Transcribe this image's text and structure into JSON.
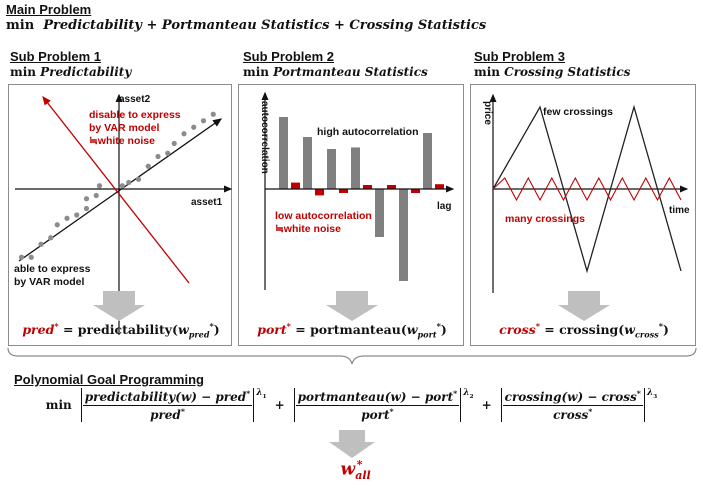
{
  "main": {
    "title": "Main Problem",
    "formula_parts": [
      "min",
      "Predictability",
      "+",
      "Portmanteau Statistics",
      "+",
      "Crossing Statistics"
    ]
  },
  "sub1": {
    "title": "Sub Problem 1",
    "objective": [
      "min",
      "Predictability"
    ],
    "axis_x": "asset1",
    "axis_y": "asset2",
    "label_red": [
      "disable to express",
      "by VAR model",
      "≒white noise"
    ],
    "label_black": [
      "able to express",
      "by VAR model"
    ],
    "result": [
      "pred",
      "*",
      " = predictability(",
      "w",
      "pred",
      "*",
      ")"
    ]
  },
  "sub2": {
    "title": "Sub Problem 2",
    "objective": [
      "min",
      "Portmanteau Statistics"
    ],
    "axis_x": "lag",
    "axis_y": "autocorrelation",
    "label_high": "high autocorrelation",
    "label_low": [
      "low autocorrelation",
      "≒white noise"
    ],
    "result": [
      "port",
      "*",
      " = portmanteau(",
      "w",
      "port",
      "*",
      ")"
    ]
  },
  "sub3": {
    "title": "Sub Problem 3",
    "objective": [
      "min",
      "Crossing Statistics"
    ],
    "axis_x": "time",
    "axis_y": "price",
    "label_few": "few crossings",
    "label_many": "many crossings",
    "result": [
      "cross",
      "*",
      " = crossing(",
      "w",
      "cross",
      "*",
      ")"
    ]
  },
  "pgp": {
    "title": "Polynomial Goal Programming",
    "min": "min",
    "t1_num": [
      "predictability(w) − pred",
      "*"
    ],
    "t1_den": [
      "pred",
      "*"
    ],
    "t1_exp": [
      "λ",
      "1"
    ],
    "plus": "+",
    "t2_num": [
      "portmanteau(w) − port",
      "*"
    ],
    "t2_den": [
      "port",
      "*"
    ],
    "t2_exp": [
      "λ",
      "2"
    ],
    "t3_num": [
      "crossing(w) − cross",
      "*"
    ],
    "t3_den": [
      "cross",
      "*"
    ],
    "t3_exp": [
      "λ",
      "3"
    ],
    "final": [
      "w",
      "all",
      "*"
    ]
  },
  "chart_data": [
    {
      "type": "scatter",
      "title": "",
      "xlabel": "asset1",
      "ylabel": "asset2",
      "points": [
        [
          -1.5,
          -1.05
        ],
        [
          -1.35,
          -1.05
        ],
        [
          -1.2,
          -0.85
        ],
        [
          -1.05,
          -0.75
        ],
        [
          -0.95,
          -0.55
        ],
        [
          -0.8,
          -0.45
        ],
        [
          -0.65,
          -0.4
        ],
        [
          -0.5,
          -0.3
        ],
        [
          -0.5,
          -0.15
        ],
        [
          -0.35,
          -0.1
        ],
        [
          -0.3,
          0.05
        ],
        [
          0.05,
          0.05
        ],
        [
          0.15,
          0.1
        ],
        [
          0.3,
          0.15
        ],
        [
          0.45,
          0.35
        ],
        [
          0.6,
          0.5
        ],
        [
          0.75,
          0.55
        ],
        [
          0.85,
          0.7
        ],
        [
          1.0,
          0.85
        ],
        [
          1.15,
          0.95
        ],
        [
          1.3,
          1.05
        ],
        [
          1.45,
          1.15
        ]
      ]
    },
    {
      "type": "bar",
      "title": "",
      "xlabel": "lag",
      "ylabel": "autocorrelation",
      "series": [
        {
          "values": [
            0.9,
            0.65,
            0.5,
            0.52,
            -0.6,
            -1.15,
            0.7
          ]
        },
        {
          "values": [
            0.08,
            -0.08,
            -0.05,
            0.05,
            0.05,
            -0.05,
            0.06
          ]
        }
      ],
      "colors": [
        "#808080",
        "#c00000"
      ]
    },
    {
      "type": "line",
      "title": "",
      "xlabel": "time",
      "ylabel": "price",
      "series": [
        {
          "values": [
            0,
            1,
            -1,
            1,
            -1
          ]
        },
        {
          "values": [
            0,
            0.2,
            -0.2,
            0.2,
            -0.2,
            0.2,
            -0.2,
            0.2,
            -0.2,
            0.2,
            -0.2,
            0.2,
            -0.2,
            0.2,
            -0.2,
            0.2,
            -0.2
          ]
        }
      ],
      "colors": [
        "#222222",
        "#c00000"
      ]
    }
  ]
}
